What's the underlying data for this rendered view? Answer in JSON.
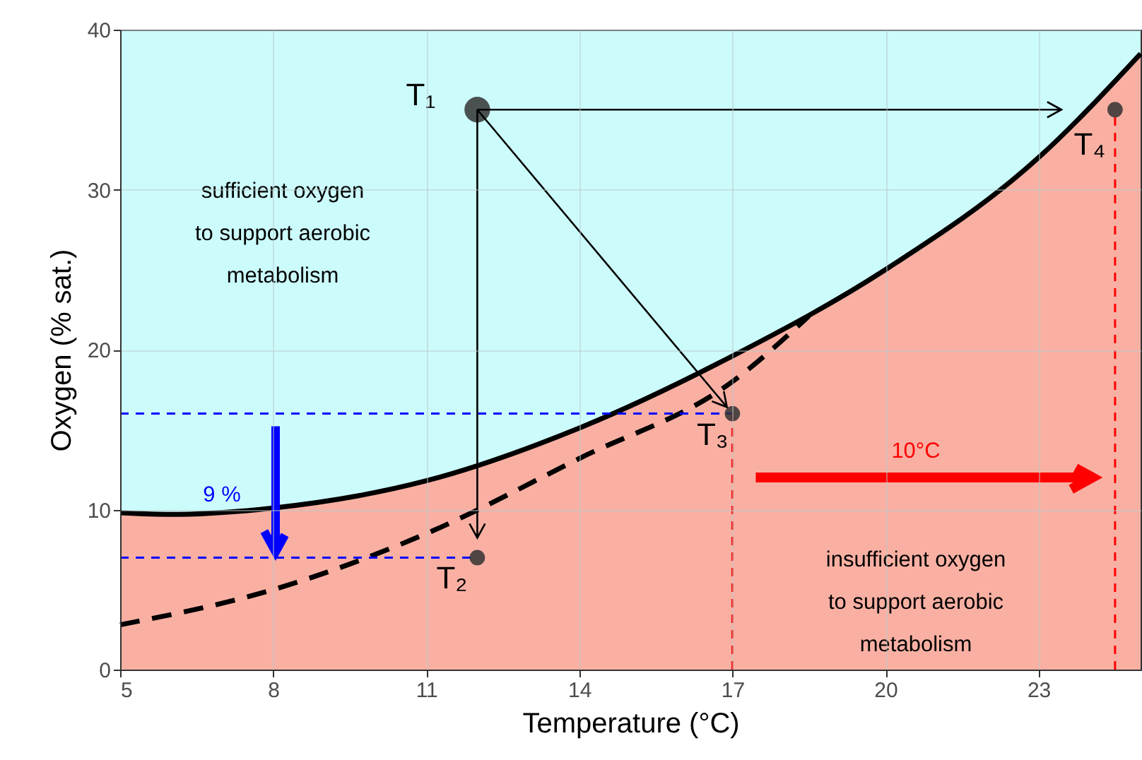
{
  "chart_data": {
    "type": "line",
    "xlabel": "Temperature (°C)",
    "ylabel": "Oxygen (% sat.)",
    "xlim": [
      5,
      25
    ],
    "xticks": [
      5,
      8,
      11,
      14,
      17,
      20,
      23
    ],
    "ylim": [
      0,
      40
    ],
    "yticks": [
      0,
      10,
      20,
      30,
      40
    ],
    "grid": true,
    "series": [
      {
        "type": "area",
        "color": "#f9b0a3",
        "x": [
          5,
          6,
          8,
          11,
          14,
          17,
          20,
          23,
          25
        ],
        "values": [
          9.8,
          9.7,
          10.1,
          11.8,
          15.1,
          19.6,
          25,
          32,
          38.5
        ]
      },
      {
        "color": "#000000",
        "line_style": "dashed",
        "x": [
          5,
          8,
          11,
          14,
          17,
          18.5
        ],
        "values": [
          2.8,
          5,
          8.5,
          13.2,
          18,
          22.1
        ]
      },
      {
        "type": "line",
        "color": "#0000ff",
        "line_style": "dashed",
        "x": [
          5,
          17
        ],
        "values": [
          16,
          16
        ]
      },
      {
        "type": "line",
        "color": "#0000ff",
        "line_style": "dashed",
        "x": [
          5,
          12
        ],
        "values": [
          7,
          7
        ]
      },
      {
        "type": "line",
        "color": "#ff0000",
        "line_style": "dashed",
        "x": [
          17,
          17
        ],
        "values": [
          0,
          16
        ]
      },
      {
        "type": "line",
        "color": "#ff0000",
        "line_style": "dashed",
        "x": [
          24.5,
          24.5
        ],
        "values": [
          0,
          35
        ]
      },
      {
        "type": "bubble",
        "color": "#333333",
        "x": [
          12,
          12,
          17,
          24.5
        ],
        "values": [
          35,
          7,
          16,
          35
        ],
        "sizes": [
          1,
          0.36,
          0.36,
          0.36
        ]
      }
    ],
    "annotations": [
      {
        "text": "T₁",
        "x": 12,
        "y": 35
      },
      {
        "text": "T₂",
        "x": 12,
        "y": 7
      },
      {
        "text": "T₃",
        "x": 17,
        "y": 16
      },
      {
        "text": "T₄",
        "x": 24.5,
        "y": 35
      },
      "sufficient oxygen\nto support aerobic\nmetabolism",
      "9 %",
      "10°C",
      "insufficient oxygen\nto support aerobic\nmetabolism"
    ]
  }
}
